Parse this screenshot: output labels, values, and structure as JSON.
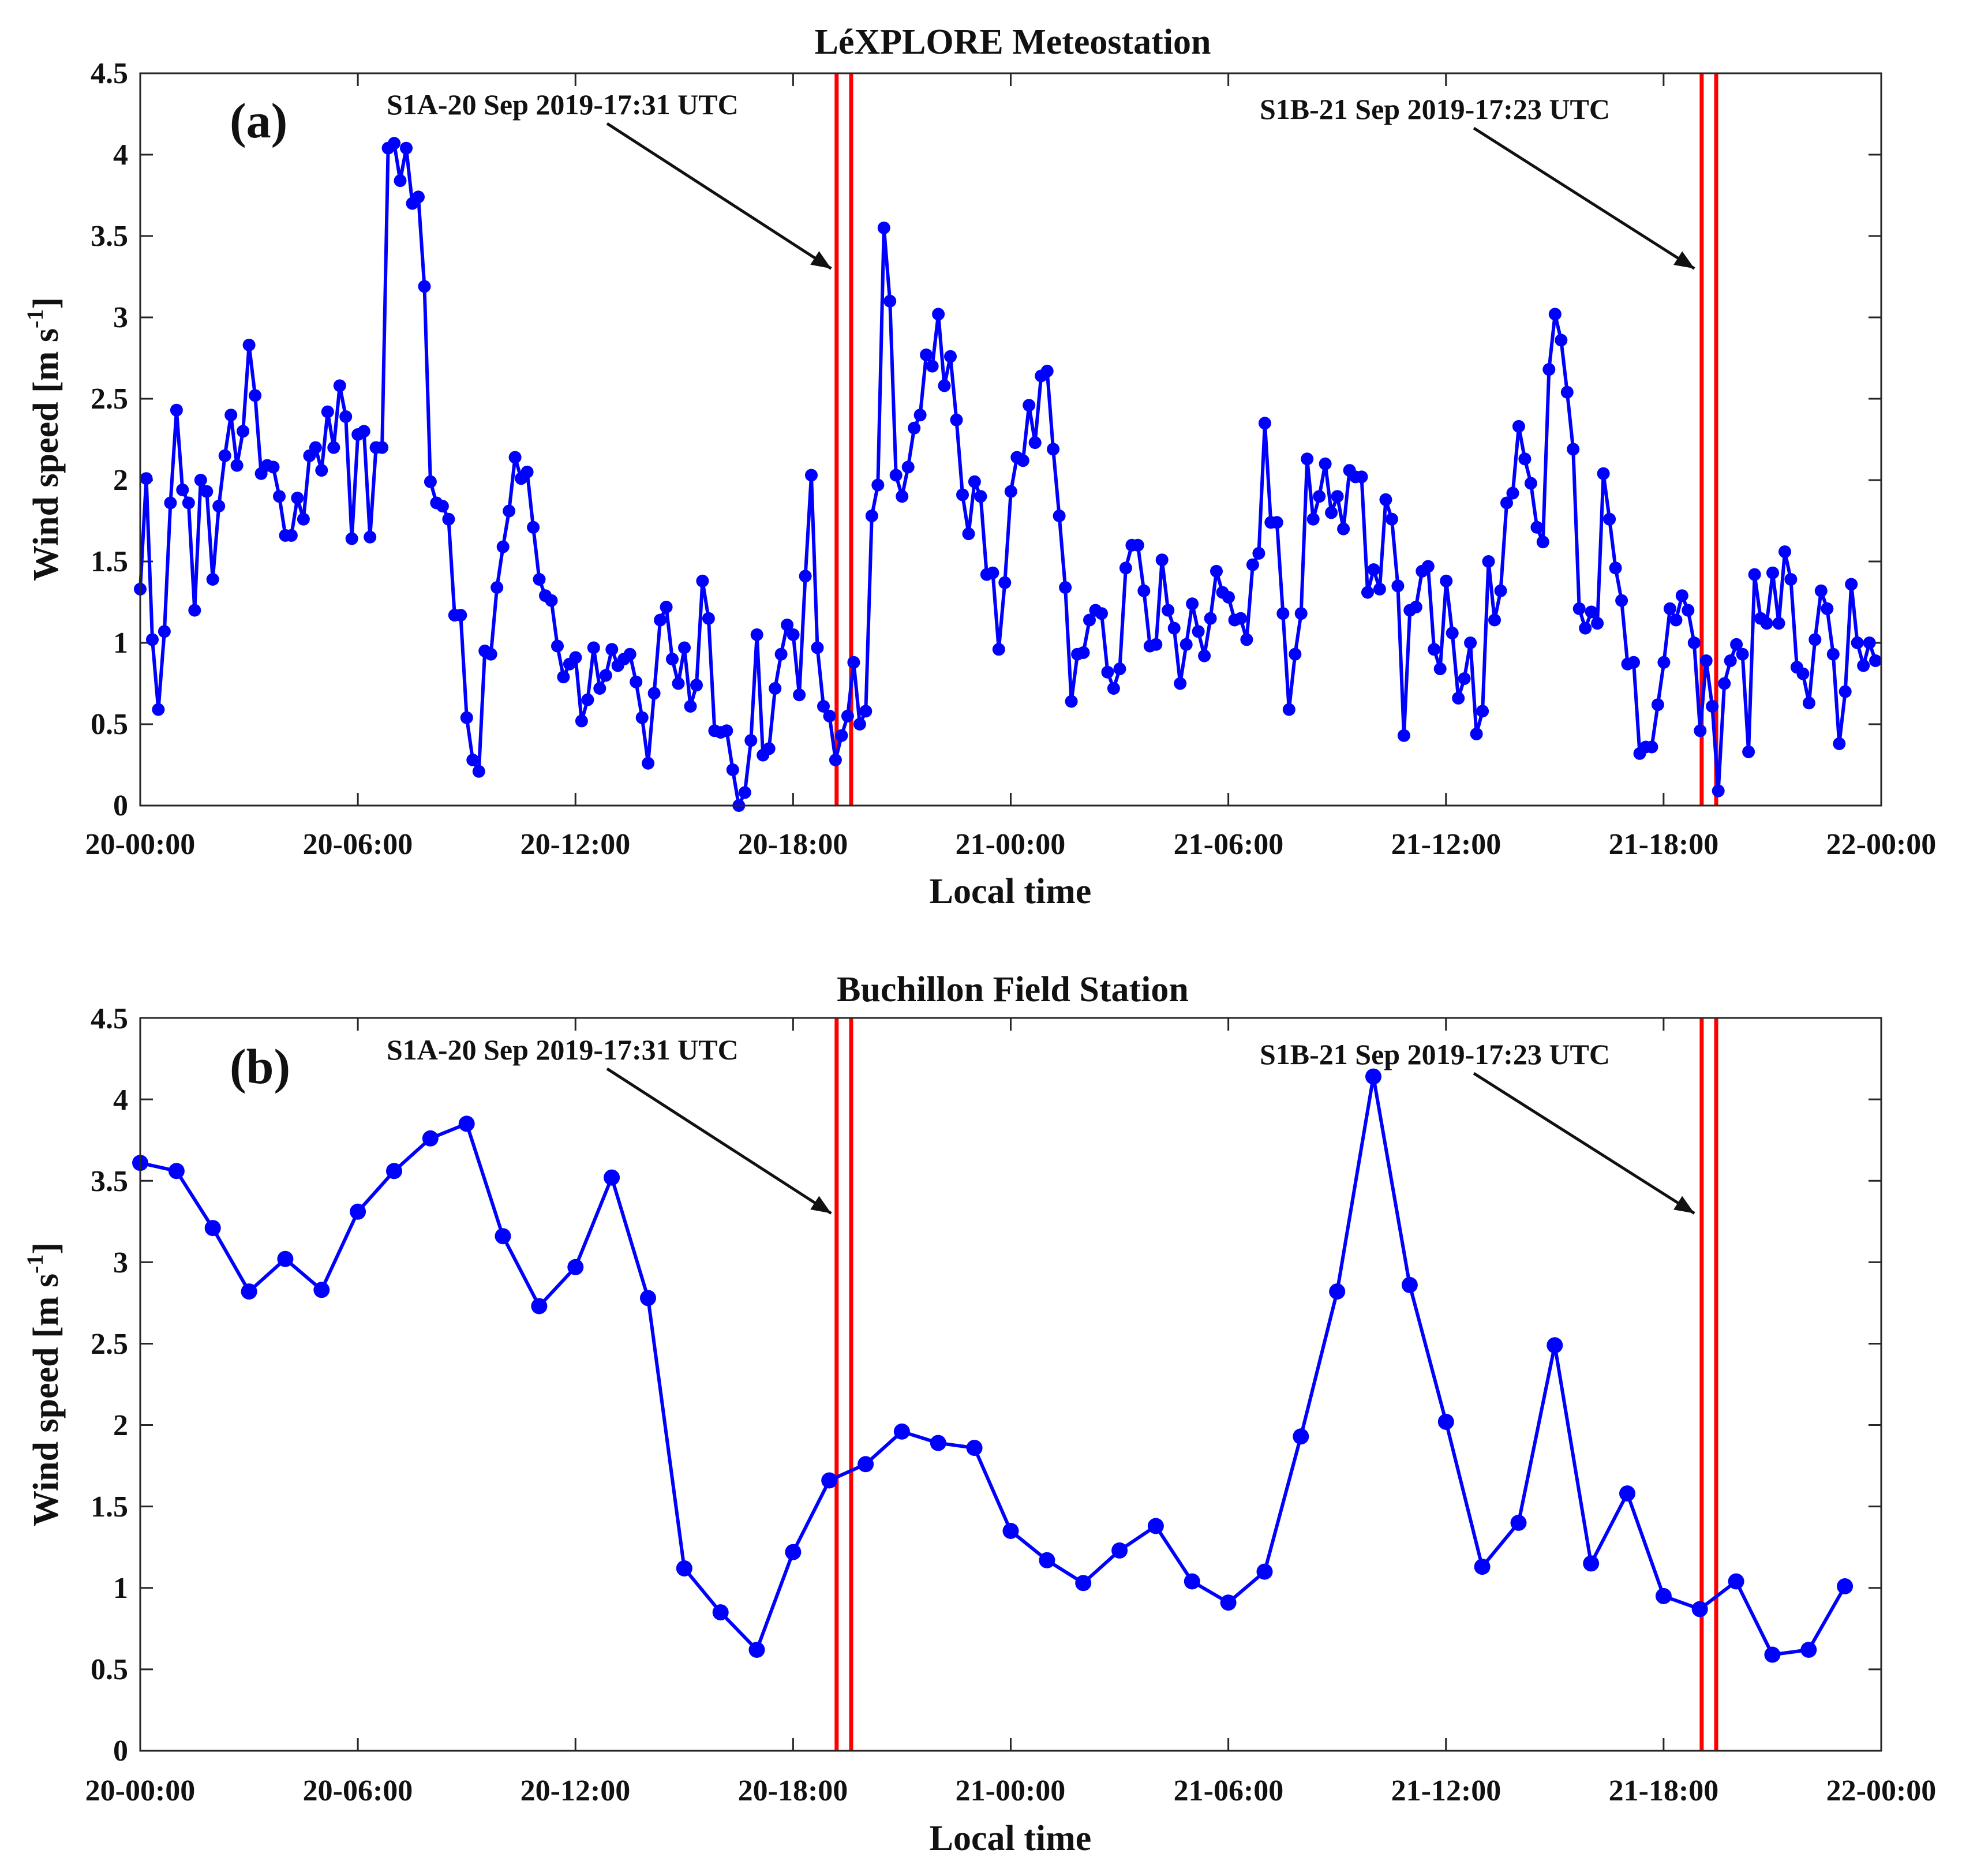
{
  "chart_data": [
    {
      "type": "line",
      "panel": "(a)",
      "title": "LéXPLORE Meteostation",
      "xlabel": "Local time",
      "ylabel": "Wind speed [m s",
      "ylabel_sup": "-1",
      "ylabel_end": "]",
      "xlim": [
        0,
        48
      ],
      "ylim": [
        0,
        4.5
      ],
      "x_ticks": [
        0,
        6,
        12,
        18,
        24,
        30,
        36,
        42,
        48
      ],
      "x_tick_labels": [
        "20-00:00",
        "20-06:00",
        "20-12:00",
        "20-18:00",
        "21-00:00",
        "21-06:00",
        "21-12:00",
        "21-18:00",
        "22-00:00"
      ],
      "y_ticks": [
        0,
        0.5,
        1,
        1.5,
        2,
        2.5,
        3,
        3.5,
        4,
        4.5
      ],
      "y_tick_labels": [
        "0",
        "0.5",
        "1",
        "1.5",
        "2",
        "2.5",
        "3",
        "3.5",
        "4",
        "4.5"
      ],
      "series_color": "#0000ff",
      "marker_color": "#0000ff",
      "overpass_color": "#ff0000",
      "overpass_lines": [
        19.2,
        19.6,
        43.05,
        43.45
      ],
      "annotations": [
        {
          "label": "S1A-20 Sep 2019-17:31 UTC",
          "x": 19.05,
          "y": 3.3
        },
        {
          "label": "S1B-21 Sep 2019-17:23 UTC",
          "x": 42.85,
          "y": 3.3
        }
      ],
      "series": [
        {
          "name": "Wind speed",
          "x_start": 0,
          "x_step": 0.1667,
          "values": [
            1.33,
            2.01,
            1.02,
            0.59,
            1.07,
            1.86,
            2.43,
            1.94,
            1.86,
            1.2,
            2.0,
            1.93,
            1.39,
            1.84,
            2.15,
            2.4,
            2.09,
            2.3,
            2.83,
            2.52,
            2.04,
            2.09,
            2.08,
            1.9,
            1.66,
            1.66,
            1.89,
            1.76,
            2.15,
            2.2,
            2.06,
            2.42,
            2.2,
            2.58,
            2.39,
            1.64,
            2.28,
            2.3,
            1.65,
            2.2,
            2.2,
            4.04,
            4.07,
            3.84,
            4.04,
            3.7,
            3.74,
            3.19,
            1.99,
            1.86,
            1.84,
            1.76,
            1.17,
            1.17,
            0.54,
            0.28,
            0.21,
            0.95,
            0.93,
            1.34,
            1.59,
            1.81,
            2.14,
            2.01,
            2.05,
            1.71,
            1.39,
            1.29,
            1.26,
            0.98,
            0.79,
            0.87,
            0.91,
            0.52,
            0.65,
            0.97,
            0.72,
            0.8,
            0.96,
            0.86,
            0.9,
            0.93,
            0.76,
            0.54,
            0.26,
            0.69,
            1.14,
            1.22,
            0.9,
            0.75,
            0.97,
            0.61,
            0.74,
            1.38,
            1.15,
            0.46,
            0.45,
            0.46,
            0.22,
            0.0,
            0.08,
            0.4,
            1.05,
            0.31,
            0.35,
            0.72,
            0.93,
            1.11,
            1.05,
            0.68,
            1.41,
            2.03,
            0.97,
            0.61,
            0.55,
            0.28,
            0.43,
            0.55,
            0.88,
            0.5,
            0.58,
            1.78,
            1.97,
            3.55,
            3.1,
            2.03,
            1.9,
            2.08,
            2.32,
            2.4,
            2.77,
            2.7,
            3.02,
            2.58,
            2.76,
            2.37,
            1.91,
            1.67,
            1.99,
            1.9,
            1.42,
            1.43,
            0.96,
            1.37,
            1.93,
            2.14,
            2.12,
            2.46,
            2.23,
            2.64,
            2.67,
            2.19,
            1.78,
            1.34,
            0.64,
            0.93,
            0.94,
            1.14,
            1.2,
            1.18,
            0.82,
            0.72,
            0.84,
            1.46,
            1.6,
            1.6,
            1.32,
            0.98,
            0.99,
            1.51,
            1.2,
            1.09,
            0.75,
            0.99,
            1.24,
            1.07,
            0.92,
            1.15,
            1.44,
            1.31,
            1.28,
            1.14,
            1.15,
            1.02,
            1.48,
            1.55,
            2.35,
            1.74,
            1.74,
            1.18,
            0.59,
            0.93,
            1.18,
            2.13,
            1.76,
            1.9,
            2.1,
            1.8,
            1.9,
            1.7,
            2.06,
            2.02,
            2.02,
            1.31,
            1.45,
            1.33,
            1.88,
            1.76,
            1.35,
            0.43,
            1.2,
            1.22,
            1.44,
            1.47,
            0.96,
            0.84,
            1.38,
            1.06,
            0.66,
            0.78,
            1.0,
            0.44,
            0.58,
            1.5,
            1.14,
            1.32,
            1.86,
            1.92,
            2.33,
            2.13,
            1.98,
            1.71,
            1.62,
            2.68,
            3.02,
            2.86,
            2.54,
            2.19,
            1.21,
            1.09,
            1.19,
            1.12,
            2.04,
            1.76,
            1.46,
            1.26,
            0.87,
            0.88,
            0.32,
            0.36,
            0.36,
            0.62,
            0.88,
            1.21,
            1.14,
            1.29,
            1.2,
            1.0,
            0.46,
            0.89,
            0.61,
            0.09,
            0.75,
            0.89,
            0.99,
            0.93,
            0.33,
            1.42,
            1.15,
            1.12,
            1.43,
            1.12,
            1.56,
            1.39,
            0.85,
            0.81,
            0.63,
            1.02,
            1.32,
            1.21,
            0.93,
            0.38,
            0.7,
            1.36,
            1.0,
            0.86,
            1.0,
            0.89
          ]
        }
      ]
    },
    {
      "type": "line",
      "panel": "(b)",
      "title": "Buchillon Field Station",
      "xlabel": "Local time",
      "ylabel": "Wind speed [m s",
      "ylabel_sup": "-1",
      "ylabel_end": "]",
      "xlim": [
        0,
        48
      ],
      "ylim": [
        0,
        4.5
      ],
      "x_ticks": [
        0,
        6,
        12,
        18,
        24,
        30,
        36,
        42,
        48
      ],
      "x_tick_labels": [
        "20-00:00",
        "20-06:00",
        "20-12:00",
        "20-18:00",
        "21-00:00",
        "21-06:00",
        "21-12:00",
        "21-18:00",
        "22-00:00"
      ],
      "y_ticks": [
        0,
        0.5,
        1,
        1.5,
        2,
        2.5,
        3,
        3.5,
        4,
        4.5
      ],
      "y_tick_labels": [
        "0",
        "0.5",
        "1",
        "1.5",
        "2",
        "2.5",
        "3",
        "3.5",
        "4",
        "4.5"
      ],
      "series_color": "#0000ff",
      "marker_color": "#0000ff",
      "overpass_color": "#ff0000",
      "overpass_lines": [
        19.2,
        19.6,
        43.05,
        43.45
      ],
      "annotations": [
        {
          "label": "S1A-20 Sep 2019-17:31 UTC",
          "x": 19.05,
          "y": 3.3
        },
        {
          "label": "S1B-21 Sep 2019-17:23 UTC",
          "x": 42.85,
          "y": 3.3
        }
      ],
      "series": [
        {
          "name": "Wind speed",
          "x_start": 0,
          "x_step": 1,
          "values": [
            3.61,
            3.56,
            3.21,
            2.82,
            3.02,
            2.83,
            3.31,
            3.56,
            3.76,
            3.85,
            3.16,
            2.73,
            2.97,
            3.52,
            2.78,
            1.12,
            0.85,
            0.62,
            1.22,
            1.66,
            1.76,
            1.96,
            1.89,
            1.86,
            1.35,
            1.17,
            1.03,
            1.23,
            1.38,
            1.04,
            0.91,
            1.1,
            1.93,
            2.82,
            4.14,
            2.86,
            2.02,
            1.13,
            1.4,
            2.49,
            1.15,
            1.58,
            0.95,
            0.87,
            1.04,
            0.59,
            0.62,
            1.01
          ]
        }
      ]
    }
  ]
}
